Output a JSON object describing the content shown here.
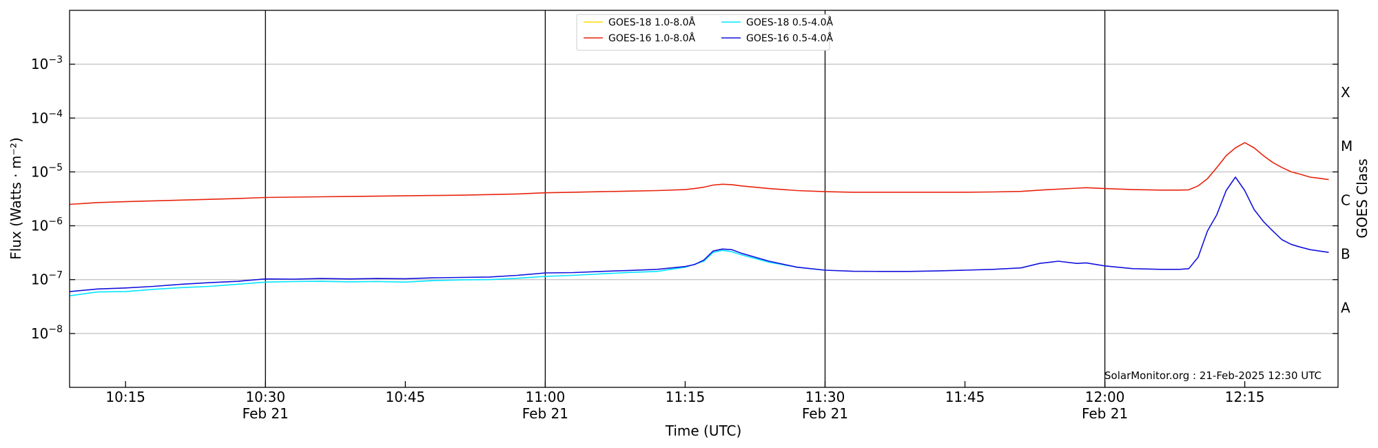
{
  "chart_data": {
    "type": "line",
    "title": "",
    "xlabel": "Time (UTC)",
    "ylabel": "Flux (Watts · m⁻²)",
    "ylabel_right": "GOES Class",
    "yscale": "log",
    "ylim": [
      1e-09,
      0.01
    ],
    "xlim": [
      "10:09",
      "12:25"
    ],
    "grid": "horizontal at decades, vertical at half-hours",
    "legend_position": "top-center",
    "credit": "SolarMonitor.org : 21-Feb-2025 12:30 UTC",
    "y_ticks": [
      {
        "value": 1e-08,
        "base": "10",
        "exp": "−8"
      },
      {
        "value": 1e-07,
        "base": "10",
        "exp": "−7"
      },
      {
        "value": 1e-06,
        "base": "10",
        "exp": "−6"
      },
      {
        "value": 1e-05,
        "base": "10",
        "exp": "−5"
      },
      {
        "value": 0.0001,
        "base": "10",
        "exp": "−4"
      },
      {
        "value": 0.001,
        "base": "10",
        "exp": "−3"
      }
    ],
    "x_ticks": [
      {
        "time": "10:15",
        "label": "10:15",
        "date": ""
      },
      {
        "time": "10:30",
        "label": "10:30",
        "date": "Feb 21"
      },
      {
        "time": "10:45",
        "label": "10:45",
        "date": ""
      },
      {
        "time": "11:00",
        "label": "11:00",
        "date": "Feb 21"
      },
      {
        "time": "11:15",
        "label": "11:15",
        "date": ""
      },
      {
        "time": "11:30",
        "label": "11:30",
        "date": "Feb 21"
      },
      {
        "time": "11:45",
        "label": "11:45",
        "date": ""
      },
      {
        "time": "12:00",
        "label": "12:00",
        "date": "Feb 21"
      },
      {
        "time": "12:15",
        "label": "12:15",
        "date": ""
      }
    ],
    "goes_classes": [
      {
        "label": "X",
        "value": 0.0003
      },
      {
        "label": "M",
        "value": 3e-05
      },
      {
        "label": "C",
        "value": 3e-06
      },
      {
        "label": "B",
        "value": 3e-07
      },
      {
        "label": "A",
        "value": 3e-08
      }
    ],
    "series": [
      {
        "name": "GOES-18 1.0-8.0Å",
        "color": "#ffd700",
        "x": [],
        "y": []
      },
      {
        "name": "GOES-18 0.5-4.0Å",
        "color": "#00e5ff",
        "x": [
          "10:09",
          "10:12",
          "10:15",
          "10:18",
          "10:21",
          "10:24",
          "10:27",
          "10:30",
          "10:33",
          "10:36",
          "10:39",
          "10:42",
          "10:45",
          "10:48",
          "10:51",
          "10:54",
          "10:57",
          "11:00",
          "11:03",
          "11:06",
          "11:09",
          "11:12",
          "11:15",
          "11:17",
          "11:18",
          "11:19",
          "11:20",
          "11:21",
          "11:24",
          "11:27",
          "11:30"
        ],
        "y": [
          5e-08,
          5.9e-08,
          6e-08,
          6.6e-08,
          7.1e-08,
          7.5e-08,
          8.2e-08,
          9e-08,
          9.2e-08,
          9.3e-08,
          9.1e-08,
          9.2e-08,
          9e-08,
          9.6e-08,
          9.9e-08,
          1e-07,
          1.06e-07,
          1.15e-07,
          1.2e-07,
          1.28e-07,
          1.36e-07,
          1.42e-07,
          1.7e-07,
          2.2e-07,
          3.2e-07,
          3.5e-07,
          3.3e-07,
          2.9e-07,
          2.1e-07,
          1.7e-07,
          1.5e-07
        ]
      },
      {
        "name": "GOES-16 1.0-8.0Å",
        "color": "#e8220c",
        "x": [
          "10:09",
          "10:12",
          "10:15",
          "10:18",
          "10:21",
          "10:24",
          "10:27",
          "10:30",
          "10:33",
          "10:36",
          "10:39",
          "10:42",
          "10:45",
          "10:48",
          "10:51",
          "10:54",
          "10:57",
          "11:00",
          "11:03",
          "11:06",
          "11:09",
          "11:12",
          "11:15",
          "11:16",
          "11:17",
          "11:18",
          "11:19",
          "11:20",
          "11:21",
          "11:24",
          "11:27",
          "11:30",
          "11:33",
          "11:36",
          "11:39",
          "11:42",
          "11:45",
          "11:48",
          "11:51",
          "11:54",
          "11:57",
          "11:58",
          "12:00",
          "12:03",
          "12:06",
          "12:08",
          "12:09",
          "12:10",
          "12:11",
          "12:12",
          "12:13",
          "12:14",
          "12:15",
          "12:16",
          "12:17",
          "12:18",
          "12:19",
          "12:20",
          "12:21",
          "12:22",
          "12:23",
          "12:24"
        ],
        "y": [
          2.5e-06,
          2.7e-06,
          2.8e-06,
          2.9e-06,
          3e-06,
          3.1e-06,
          3.2e-06,
          3.35e-06,
          3.4e-06,
          3.45e-06,
          3.5e-06,
          3.55e-06,
          3.6e-06,
          3.65e-06,
          3.7e-06,
          3.8e-06,
          3.9e-06,
          4.1e-06,
          4.2e-06,
          4.3e-06,
          4.4e-06,
          4.5e-06,
          4.7e-06,
          4.9e-06,
          5.2e-06,
          5.7e-06,
          5.9e-06,
          5.8e-06,
          5.5e-06,
          4.9e-06,
          4.5e-06,
          4.3e-06,
          4.2e-06,
          4.2e-06,
          4.2e-06,
          4.2e-06,
          4.2e-06,
          4.25e-06,
          4.35e-06,
          4.7e-06,
          5e-06,
          5.1e-06,
          4.9e-06,
          4.7e-06,
          4.6e-06,
          4.6e-06,
          4.65e-06,
          5.5e-06,
          7.5e-06,
          1.2e-05,
          2e-05,
          2.8e-05,
          3.5e-05,
          2.8e-05,
          2e-05,
          1.5e-05,
          1.2e-05,
          1e-05,
          9e-06,
          8e-06,
          7.6e-06,
          7.2e-06
        ]
      },
      {
        "name": "GOES-16 0.5-4.0Å",
        "color": "#1111dd",
        "x": [
          "10:09",
          "10:12",
          "10:15",
          "10:18",
          "10:21",
          "10:24",
          "10:27",
          "10:30",
          "10:33",
          "10:36",
          "10:39",
          "10:42",
          "10:45",
          "10:48",
          "10:51",
          "10:54",
          "10:57",
          "11:00",
          "11:03",
          "11:06",
          "11:09",
          "11:12",
          "11:15",
          "11:16",
          "11:17",
          "11:18",
          "11:19",
          "11:20",
          "11:21",
          "11:24",
          "11:27",
          "11:30",
          "11:33",
          "11:36",
          "11:39",
          "11:42",
          "11:45",
          "11:48",
          "11:51",
          "11:53",
          "11:55",
          "11:57",
          "11:58",
          "12:00",
          "12:03",
          "12:06",
          "12:08",
          "12:09",
          "12:10",
          "12:11",
          "12:12",
          "12:13",
          "12:14",
          "12:15",
          "12:16",
          "12:17",
          "12:18",
          "12:19",
          "12:20",
          "12:21",
          "12:22",
          "12:23",
          "12:24"
        ],
        "y": [
          6e-08,
          6.7e-08,
          7e-08,
          7.5e-08,
          8.2e-08,
          8.8e-08,
          9.3e-08,
          1.03e-07,
          1.02e-07,
          1.05e-07,
          1.03e-07,
          1.05e-07,
          1.04e-07,
          1.08e-07,
          1.1e-07,
          1.12e-07,
          1.2e-07,
          1.33e-07,
          1.35e-07,
          1.42e-07,
          1.48e-07,
          1.55e-07,
          1.75e-07,
          1.9e-07,
          2.3e-07,
          3.4e-07,
          3.7e-07,
          3.6e-07,
          3.1e-07,
          2.2e-07,
          1.7e-07,
          1.5e-07,
          1.43e-07,
          1.42e-07,
          1.42e-07,
          1.45e-07,
          1.5e-07,
          1.55e-07,
          1.65e-07,
          2e-07,
          2.2e-07,
          2e-07,
          2.05e-07,
          1.8e-07,
          1.6e-07,
          1.55e-07,
          1.55e-07,
          1.6e-07,
          2.6e-07,
          8e-07,
          1.6e-06,
          4.5e-06,
          8e-06,
          4.5e-06,
          2e-06,
          1.2e-06,
          8e-07,
          5.5e-07,
          4.5e-07,
          4e-07,
          3.6e-07,
          3.4e-07,
          3.2e-07
        ]
      }
    ]
  }
}
